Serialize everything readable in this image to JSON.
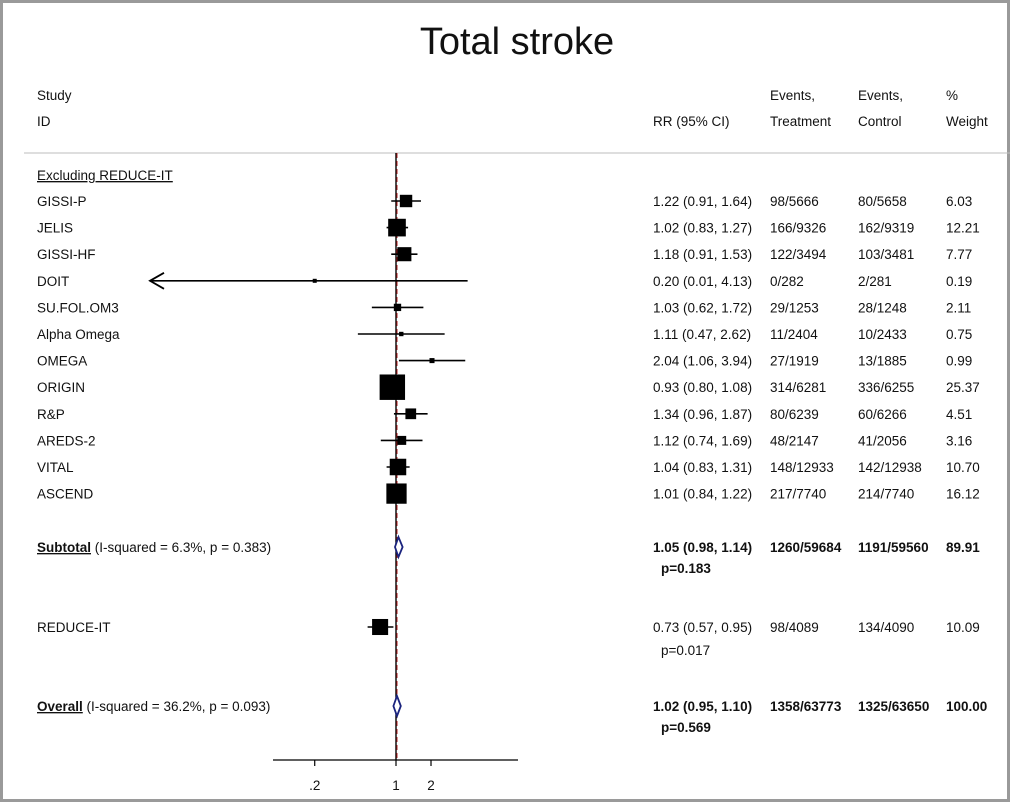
{
  "chart_data": {
    "type": "forest",
    "title": "Total stroke",
    "headers": {
      "study_1": "Study",
      "study_2": "ID",
      "rr": "RR (95% CI)",
      "ev_t_1": "Events,",
      "ev_t_2": "Treatment",
      "ev_c_1": "Events,",
      "ev_c_2": "Control",
      "w_1": "%",
      "w_2": "Weight"
    },
    "group_label": "Excluding REDUCE-IT",
    "studies": [
      {
        "name": "GISSI-P",
        "rr": 1.22,
        "lo": 0.91,
        "hi": 1.64,
        "rr_text": "1.22 (0.91, 1.64)",
        "ev_t": "98/5666",
        "ev_c": "80/5658",
        "weight": 6.03,
        "weight_text": "6.03"
      },
      {
        "name": "JELIS",
        "rr": 1.02,
        "lo": 0.83,
        "hi": 1.27,
        "rr_text": "1.02 (0.83, 1.27)",
        "ev_t": "166/9326",
        "ev_c": "162/9319",
        "weight": 12.21,
        "weight_text": "12.21"
      },
      {
        "name": "GISSI-HF",
        "rr": 1.18,
        "lo": 0.91,
        "hi": 1.53,
        "rr_text": "1.18 (0.91, 1.53)",
        "ev_t": "122/3494",
        "ev_c": "103/3481",
        "weight": 7.77,
        "weight_text": "7.77"
      },
      {
        "name": "DOIT",
        "rr": 0.2,
        "lo": 0.01,
        "hi": 4.13,
        "rr_text": "0.20 (0.01, 4.13)",
        "ev_t": "0/282",
        "ev_c": "2/281",
        "weight": 0.19,
        "weight_text": "0.19",
        "arrow_left": true
      },
      {
        "name": "SU.FOL.OM3",
        "rr": 1.03,
        "lo": 0.62,
        "hi": 1.72,
        "rr_text": "1.03 (0.62, 1.72)",
        "ev_t": "29/1253",
        "ev_c": "28/1248",
        "weight": 2.11,
        "weight_text": "2.11"
      },
      {
        "name": "Alpha Omega",
        "rr": 1.11,
        "lo": 0.47,
        "hi": 2.62,
        "rr_text": "1.11 (0.47, 2.62)",
        "ev_t": "11/2404",
        "ev_c": "10/2433",
        "weight": 0.75,
        "weight_text": "0.75"
      },
      {
        "name": "OMEGA",
        "rr": 2.04,
        "lo": 1.06,
        "hi": 3.94,
        "rr_text": "2.04 (1.06, 3.94)",
        "ev_t": "27/1919",
        "ev_c": "13/1885",
        "weight": 0.99,
        "weight_text": "0.99"
      },
      {
        "name": "ORIGIN",
        "rr": 0.93,
        "lo": 0.8,
        "hi": 1.08,
        "rr_text": "0.93 (0.80, 1.08)",
        "ev_t": "314/6281",
        "ev_c": "336/6255",
        "weight": 25.37,
        "weight_text": "25.37"
      },
      {
        "name": "R&P",
        "rr": 1.34,
        "lo": 0.96,
        "hi": 1.87,
        "rr_text": "1.34 (0.96, 1.87)",
        "ev_t": "80/6239",
        "ev_c": "60/6266",
        "weight": 4.51,
        "weight_text": "4.51"
      },
      {
        "name": "AREDS-2",
        "rr": 1.12,
        "lo": 0.74,
        "hi": 1.69,
        "rr_text": "1.12 (0.74, 1.69)",
        "ev_t": "48/2147",
        "ev_c": "41/2056",
        "weight": 3.16,
        "weight_text": "3.16"
      },
      {
        "name": "VITAL",
        "rr": 1.04,
        "lo": 0.83,
        "hi": 1.31,
        "rr_text": "1.04 (0.83, 1.31)",
        "ev_t": "148/12933",
        "ev_c": "142/12938",
        "weight": 10.7,
        "weight_text": "10.70"
      },
      {
        "name": "ASCEND",
        "rr": 1.01,
        "lo": 0.84,
        "hi": 1.22,
        "rr_text": "1.01 (0.84, 1.22)",
        "ev_t": "217/7740",
        "ev_c": "214/7740",
        "weight": 16.12,
        "weight_text": "16.12"
      }
    ],
    "subtotal": {
      "label": "Subtotal",
      "stats": "(I-squared = 6.3%, p = 0.383)",
      "rr": 1.05,
      "lo": 0.98,
      "hi": 1.14,
      "rr_text": "1.05 (0.98, 1.14)",
      "p_text": "p=0.183",
      "ev_t": "1260/59684",
      "ev_c": "1191/59560",
      "weight_text": "89.91"
    },
    "reduce_it": {
      "name": "REDUCE-IT",
      "rr": 0.73,
      "lo": 0.57,
      "hi": 0.95,
      "rr_text": "0.73 (0.57, 0.95)",
      "p_text": "p=0.017",
      "ev_t": "98/4089",
      "ev_c": "134/4090",
      "weight": 10.09,
      "weight_text": "10.09"
    },
    "overall": {
      "label": "Overall",
      "stats": "(I-squared = 36.2%, p = 0.093)",
      "rr": 1.02,
      "lo": 0.95,
      "hi": 1.1,
      "rr_text": "1.02 (0.95, 1.10)",
      "p_text": "p=0.569",
      "ev_t": "1358/63773",
      "ev_c": "1325/63650",
      "weight_text": "100.00"
    },
    "x_axis": {
      "scale": "log",
      "range": [
        0.0236,
        4.8
      ],
      "ticks": [
        {
          "value": 0.2,
          "label": ".2"
        },
        {
          "value": 1,
          "label": "1"
        },
        {
          "value": 2,
          "label": "2"
        }
      ]
    },
    "colors": {
      "marker": "#000000",
      "diamond": "#1a237e",
      "null_line": "#000000",
      "overall_line": "#b22222",
      "separator": "#bdbdbd"
    }
  }
}
